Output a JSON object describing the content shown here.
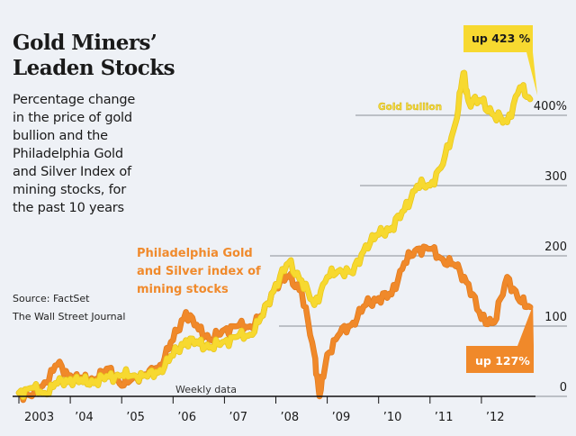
{
  "title_lines": [
    "Gold Miners’",
    "Leaden Stocks"
  ],
  "subtitle_lines": [
    "Percentage change",
    "in the price of gold",
    "bullion and the",
    "Philadelphia Gold",
    "and Silver Index of",
    "mining stocks, for",
    "the past 10 years"
  ],
  "source": "Source: FactSet",
  "publisher": "The Wall Street Journal",
  "colors": {
    "gold": "#f7d930",
    "gold_outline": "#e8c51a",
    "mining": "#f0892a",
    "background": "#eef1f6",
    "gridline": "#8a8f96",
    "axis": "#111111"
  },
  "chart_data": {
    "type": "line",
    "title": "Gold Miners’ Leaden Stocks",
    "subtitle": "Percentage change in the price of gold bullion and the Philadelphia Gold and Silver Index of mining stocks, for the past 10 years",
    "xlabel": "",
    "ylabel": "",
    "x_note": "Weekly data",
    "x_tick_labels": [
      "2003",
      "’04",
      "’05",
      "’06",
      "’07",
      "’08",
      "’09",
      "’10",
      "’11",
      "’12"
    ],
    "x_range": [
      2003.0,
      2013.0
    ],
    "ylim": [
      0,
      460
    ],
    "y_ticks": [
      0,
      100,
      200,
      300,
      400
    ],
    "y_tick_labels": [
      "0",
      "100",
      "200",
      "300",
      "400%"
    ],
    "grid": "horizontal",
    "series": [
      {
        "name": "Gold bullion",
        "label": "Gold bullion",
        "callout": "up 423 %",
        "x": [
          2003.0,
          2003.25,
          2003.5,
          2003.75,
          2004.0,
          2004.25,
          2004.5,
          2004.75,
          2005.0,
          2005.25,
          2005.5,
          2005.75,
          2006.0,
          2006.25,
          2006.5,
          2006.75,
          2007.0,
          2007.25,
          2007.5,
          2007.75,
          2008.0,
          2008.25,
          2008.5,
          2008.75,
          2009.0,
          2009.25,
          2009.5,
          2009.75,
          2010.0,
          2010.25,
          2010.5,
          2010.75,
          2011.0,
          2011.25,
          2011.5,
          2011.65,
          2011.75,
          2012.0,
          2012.25,
          2012.5,
          2012.75,
          2012.95
        ],
        "values": [
          5,
          12,
          5,
          18,
          25,
          20,
          22,
          28,
          30,
          30,
          28,
          38,
          58,
          80,
          75,
          70,
          78,
          85,
          88,
          115,
          160,
          190,
          165,
          130,
          170,
          180,
          175,
          215,
          230,
          240,
          265,
          300,
          300,
          330,
          390,
          460,
          420,
          420,
          400,
          390,
          440,
          423
        ]
      },
      {
        "name": "Philadelphia Gold and Silver index of mining stocks",
        "label": "Philadelphia Gold and Silver index of mining stocks",
        "callout": "up 127%",
        "x": [
          2003.0,
          2003.25,
          2003.5,
          2003.75,
          2004.0,
          2004.25,
          2004.5,
          2004.75,
          2005.0,
          2005.25,
          2005.5,
          2005.75,
          2006.0,
          2006.25,
          2006.5,
          2006.75,
          2007.0,
          2007.25,
          2007.5,
          2007.75,
          2008.0,
          2008.25,
          2008.5,
          2008.75,
          2008.85,
          2009.0,
          2009.25,
          2009.5,
          2009.75,
          2010.0,
          2010.25,
          2010.5,
          2010.75,
          2011.0,
          2011.25,
          2011.5,
          2011.75,
          2012.0,
          2012.25,
          2012.5,
          2012.75,
          2012.95
        ],
        "values": [
          5,
          0,
          20,
          45,
          30,
          22,
          25,
          40,
          15,
          28,
          30,
          45,
          80,
          120,
          95,
          80,
          95,
          100,
          100,
          115,
          160,
          170,
          150,
          60,
          0,
          60,
          90,
          105,
          130,
          140,
          145,
          190,
          210,
          210,
          195,
          185,
          160,
          110,
          105,
          170,
          135,
          127
        ]
      }
    ]
  }
}
